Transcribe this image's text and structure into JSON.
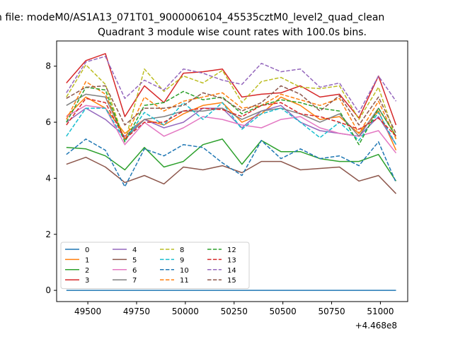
{
  "chart_data": {
    "type": "line",
    "suptitle": "n file: modeM0/AS1A13_071T01_9000006104_45535cztM0_level2_quad_clean",
    "title": "Quadrant 3 module wise count rates with 100.0s bins.",
    "xlabel": "",
    "ylabel": "",
    "x_offset_label": "+4.468e8",
    "xticks": [
      "49500",
      "49750",
      "50000",
      "50250",
      "50500",
      "50750",
      "51000"
    ],
    "xtick_values": [
      49500,
      49750,
      50000,
      50250,
      50500,
      50750,
      51000
    ],
    "yticks": [
      "0",
      "2",
      "4",
      "6",
      "8"
    ],
    "ytick_values": [
      0,
      2,
      4,
      6,
      8
    ],
    "xlim": [
      49340,
      51140
    ],
    "ylim": [
      -0.4,
      8.9
    ],
    "grid": false,
    "legend": {
      "placement": "lower-left",
      "columns": 4
    },
    "x": [
      49390,
      49490,
      49590,
      49690,
      49790,
      49890,
      49990,
      50090,
      50190,
      50290,
      50390,
      50490,
      50590,
      50690,
      50790,
      50890,
      50990,
      51080
    ],
    "series": [
      {
        "name": "0",
        "color": "#1f77b4",
        "style": "solid",
        "values": [
          0,
          0,
          0,
          0,
          0,
          0,
          0,
          0,
          0,
          0,
          0,
          0,
          0,
          0,
          0,
          0,
          0,
          0
        ]
      },
      {
        "name": "1",
        "color": "#ff7f0e",
        "style": "solid",
        "values": [
          6.2,
          6.9,
          6.5,
          5.6,
          6.1,
          5.9,
          6.3,
          6.6,
          6.7,
          6.0,
          6.3,
          6.9,
          6.6,
          6.1,
          6.2,
          5.6,
          6.4,
          5.0
        ]
      },
      {
        "name": "2",
        "color": "#2ca02c",
        "style": "solid",
        "values": [
          5.1,
          5.05,
          4.8,
          4.3,
          5.1,
          4.4,
          4.6,
          5.2,
          5.4,
          4.5,
          5.35,
          4.95,
          4.95,
          4.7,
          4.6,
          4.6,
          4.85,
          3.9
        ]
      },
      {
        "name": "3",
        "color": "#d62728",
        "style": "solid",
        "values": [
          7.4,
          8.2,
          8.45,
          6.2,
          7.3,
          6.7,
          7.75,
          7.8,
          7.9,
          6.9,
          7.0,
          7.05,
          7.3,
          6.9,
          7.0,
          6.15,
          7.65,
          5.9
        ]
      },
      {
        "name": "4",
        "color": "#9467bd",
        "style": "solid",
        "values": [
          6.0,
          6.5,
          6.1,
          5.5,
          6.1,
          5.8,
          6.0,
          6.5,
          6.5,
          5.8,
          6.4,
          6.6,
          6.0,
          5.7,
          5.6,
          5.5,
          6.2,
          5.2
        ]
      },
      {
        "name": "5",
        "color": "#8c564b",
        "style": "solid",
        "values": [
          4.5,
          4.75,
          4.4,
          3.85,
          4.1,
          3.8,
          4.4,
          4.3,
          4.45,
          4.2,
          4.6,
          4.6,
          4.3,
          4.35,
          4.4,
          3.9,
          4.1,
          3.45
        ]
      },
      {
        "name": "6",
        "color": "#e377c2",
        "style": "solid",
        "values": [
          6.2,
          6.6,
          6.5,
          5.2,
          6.0,
          5.5,
          5.8,
          6.2,
          6.1,
          5.9,
          5.8,
          6.1,
          6.2,
          5.8,
          5.6,
          5.5,
          5.7,
          4.9
        ]
      },
      {
        "name": "7",
        "color": "#7f7f7f",
        "style": "solid",
        "values": [
          6.6,
          7.0,
          6.9,
          5.4,
          6.1,
          6.2,
          6.4,
          6.4,
          6.5,
          6.1,
          6.4,
          6.5,
          6.3,
          6.0,
          6.3,
          5.5,
          6.5,
          5.5
        ]
      },
      {
        "name": "8",
        "color": "#bcbd22",
        "style": "dashed",
        "values": [
          6.9,
          8.05,
          7.35,
          5.3,
          7.9,
          7.1,
          7.65,
          7.4,
          7.85,
          6.7,
          7.45,
          7.6,
          7.25,
          7.2,
          7.3,
          6.1,
          7.25,
          5.4
        ]
      },
      {
        "name": "9",
        "color": "#17becf",
        "style": "dashed",
        "values": [
          5.5,
          6.5,
          6.5,
          5.35,
          6.35,
          5.9,
          6.7,
          6.1,
          6.7,
          5.75,
          6.3,
          6.5,
          6.0,
          5.45,
          6.0,
          5.35,
          6.35,
          5.2
        ]
      },
      {
        "name": "10",
        "color": "#1f77b4",
        "style": "dashed",
        "values": [
          4.85,
          5.4,
          5.0,
          3.7,
          5.05,
          4.8,
          5.2,
          5.1,
          4.55,
          4.1,
          5.35,
          4.7,
          5.05,
          4.7,
          4.8,
          4.45,
          5.3,
          3.85
        ]
      },
      {
        "name": "11",
        "color": "#ff7f0e",
        "style": "dashed",
        "values": [
          6.1,
          7.45,
          7.0,
          5.4,
          6.9,
          6.4,
          6.75,
          6.9,
          7.05,
          6.5,
          6.6,
          7.0,
          6.8,
          6.6,
          6.85,
          5.6,
          6.75,
          5.4
        ]
      },
      {
        "name": "12",
        "color": "#2ca02c",
        "style": "dashed",
        "values": [
          6.0,
          7.25,
          7.15,
          5.3,
          6.6,
          6.7,
          7.1,
          6.8,
          6.9,
          6.3,
          6.6,
          6.8,
          6.7,
          6.5,
          6.4,
          5.2,
          6.5,
          5.5
        ]
      },
      {
        "name": "13",
        "color": "#d62728",
        "style": "dashed",
        "values": [
          5.9,
          6.85,
          6.7,
          5.4,
          6.0,
          6.0,
          6.4,
          6.5,
          6.45,
          6.2,
          6.6,
          6.7,
          6.3,
          6.2,
          6.0,
          5.75,
          6.15,
          5.5
        ]
      },
      {
        "name": "14",
        "color": "#9467bd",
        "style": "dashed",
        "values": [
          7.05,
          8.15,
          8.35,
          6.85,
          7.5,
          7.15,
          7.9,
          7.75,
          7.5,
          7.35,
          8.1,
          7.8,
          7.9,
          7.25,
          7.4,
          6.35,
          7.65,
          6.75
        ]
      },
      {
        "name": "15",
        "color": "#8c564b",
        "style": "dashed",
        "values": [
          6.85,
          7.25,
          7.3,
          5.9,
          6.5,
          6.5,
          6.6,
          7.05,
          6.85,
          6.4,
          6.7,
          7.3,
          7.0,
          6.4,
          6.95,
          5.9,
          6.9,
          5.6
        ]
      }
    ]
  }
}
